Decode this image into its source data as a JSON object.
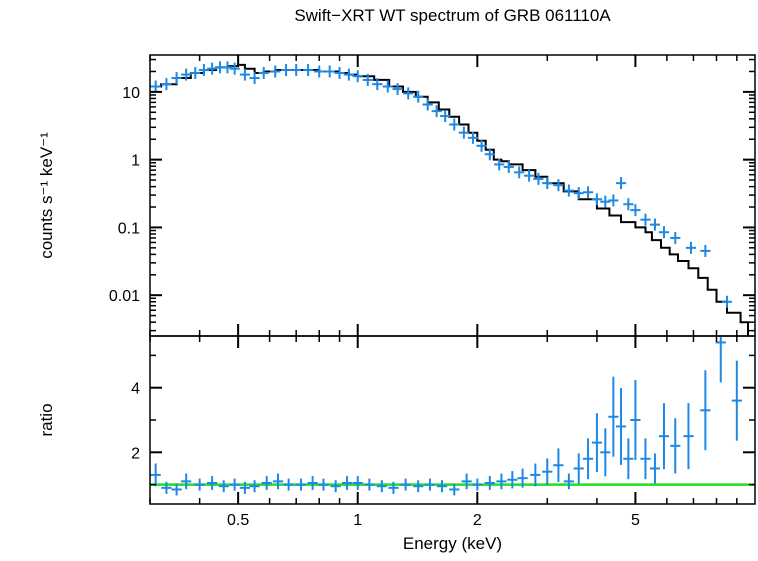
{
  "title": "Swift−XRT WT spectrum of GRB 061110A",
  "colors": {
    "data": "#1e88e5",
    "model": "#000000",
    "reference": "#22dd22",
    "axes": "#000000"
  },
  "chart_data": [
    {
      "type": "scatter",
      "panel": "spectrum",
      "xlabel": "Energy (keV)",
      "ylabel": "counts s⁻¹ keV⁻¹",
      "xscale": "log",
      "yscale": "log",
      "xlim": [
        0.3,
        10
      ],
      "ylim": [
        0.0025,
        35
      ],
      "yticks": [
        {
          "value": 10,
          "label": "10"
        },
        {
          "value": 1,
          "label": "1"
        },
        {
          "value": 0.1,
          "label": "0.1"
        },
        {
          "value": 0.01,
          "label": "0.01"
        }
      ],
      "series": [
        {
          "kind": "data",
          "x": [
            0.31,
            0.33,
            0.35,
            0.37,
            0.39,
            0.41,
            0.43,
            0.45,
            0.47,
            0.49,
            0.52,
            0.55,
            0.58,
            0.62,
            0.66,
            0.7,
            0.75,
            0.8,
            0.85,
            0.9,
            0.95,
            1.0,
            1.06,
            1.12,
            1.19,
            1.26,
            1.34,
            1.42,
            1.5,
            1.58,
            1.66,
            1.75,
            1.85,
            1.95,
            2.05,
            2.15,
            2.27,
            2.4,
            2.55,
            2.7,
            2.85,
            3.0,
            3.2,
            3.4,
            3.6,
            3.8,
            4.0,
            4.2,
            4.4,
            4.6,
            4.8,
            5.0,
            5.3,
            5.6,
            5.9,
            6.3,
            6.9,
            7.5,
            8.5
          ],
          "y": [
            12,
            13,
            16,
            18,
            19,
            21,
            22,
            23,
            23,
            22,
            18,
            16,
            19,
            20,
            21,
            21,
            21,
            20,
            20,
            19,
            18,
            17,
            15,
            13,
            12,
            11,
            9.5,
            8.5,
            6.5,
            5.2,
            4.4,
            3.3,
            2.5,
            2.1,
            1.6,
            1.2,
            0.85,
            0.78,
            0.65,
            0.58,
            0.52,
            0.45,
            0.42,
            0.35,
            0.32,
            0.33,
            0.26,
            0.24,
            0.25,
            0.45,
            0.22,
            0.18,
            0.13,
            0.11,
            0.085,
            0.07,
            0.05,
            0.045,
            0.008
          ]
        },
        {
          "kind": "model",
          "x": [
            0.3,
            0.32,
            0.35,
            0.38,
            0.41,
            0.44,
            0.47,
            0.5,
            0.52,
            0.55,
            0.58,
            0.62,
            0.66,
            0.7,
            0.75,
            0.8,
            0.85,
            0.9,
            0.95,
            1.0,
            1.1,
            1.2,
            1.3,
            1.4,
            1.5,
            1.6,
            1.7,
            1.8,
            1.9,
            2.0,
            2.1,
            2.2,
            2.3,
            2.4,
            2.6,
            2.8,
            3.0,
            3.3,
            3.6,
            4.0,
            4.3,
            4.6,
            5.0,
            5.3,
            5.5,
            5.8,
            6.1,
            6.4,
            6.8,
            7.2,
            7.6,
            8.0,
            8.5,
            9.2,
            9.6
          ],
          "y": [
            12,
            13,
            16,
            19,
            21,
            23,
            24,
            25,
            22,
            19,
            20,
            21,
            21,
            21,
            21,
            20,
            20,
            19,
            18,
            17,
            15,
            12,
            10,
            8.5,
            7,
            5.5,
            4.3,
            3.3,
            2.5,
            1.9,
            1.4,
            1.0,
            0.95,
            0.85,
            0.7,
            0.56,
            0.45,
            0.34,
            0.26,
            0.19,
            0.15,
            0.12,
            0.1,
            0.085,
            0.065,
            0.05,
            0.04,
            0.032,
            0.025,
            0.018,
            0.012,
            0.008,
            0.0055,
            0.004,
            0.0025
          ]
        }
      ]
    },
    {
      "type": "scatter",
      "panel": "ratio",
      "xlabel": "Energy (keV)",
      "ylabel": "ratio",
      "xscale": "log",
      "xlim": [
        0.3,
        10
      ],
      "ylim": [
        0.4,
        5.6
      ],
      "reference_line": 1,
      "xticks": [
        {
          "value": 0.5,
          "label": "0.5"
        },
        {
          "value": 1,
          "label": "1"
        },
        {
          "value": 2,
          "label": "2"
        },
        {
          "value": 5,
          "label": "5"
        }
      ],
      "yticks": [
        {
          "value": 2,
          "label": "2"
        },
        {
          "value": 4,
          "label": "4"
        }
      ],
      "series": [
        {
          "kind": "data",
          "x": [
            0.31,
            0.33,
            0.35,
            0.37,
            0.4,
            0.43,
            0.46,
            0.49,
            0.52,
            0.55,
            0.59,
            0.63,
            0.67,
            0.72,
            0.77,
            0.82,
            0.88,
            0.94,
            1.0,
            1.07,
            1.15,
            1.23,
            1.32,
            1.42,
            1.52,
            1.63,
            1.75,
            1.88,
            2.0,
            2.15,
            2.3,
            2.45,
            2.6,
            2.8,
            3.0,
            3.2,
            3.4,
            3.6,
            3.8,
            4.0,
            4.2,
            4.4,
            4.6,
            4.8,
            5.0,
            5.3,
            5.6,
            5.9,
            6.3,
            6.8,
            7.5,
            8.2,
            9.0
          ],
          "y": [
            1.3,
            0.9,
            0.85,
            1.1,
            1.0,
            1.05,
            0.95,
            1.0,
            0.9,
            0.95,
            1.05,
            1.1,
            1.0,
            1.0,
            1.05,
            1.0,
            0.95,
            1.05,
            1.05,
            1.0,
            0.95,
            0.9,
            1.0,
            0.95,
            1.0,
            0.95,
            0.85,
            1.1,
            1.0,
            1.05,
            1.1,
            1.15,
            1.2,
            1.3,
            1.4,
            1.6,
            1.1,
            1.5,
            1.8,
            2.3,
            2.0,
            3.1,
            2.8,
            1.8,
            3.0,
            1.8,
            1.5,
            2.5,
            2.2,
            2.5,
            3.3,
            5.4,
            3.6
          ]
        }
      ]
    }
  ]
}
